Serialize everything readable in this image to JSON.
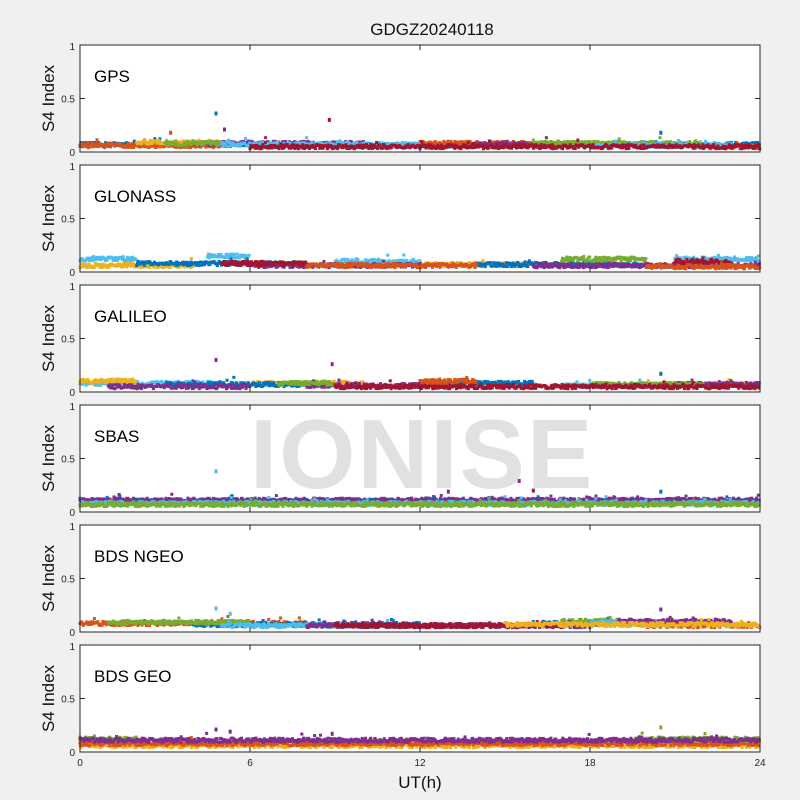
{
  "chart_data": {
    "type": "scatter",
    "title": "GDGZ20240118",
    "xlabel": "UT(h)",
    "ylabel": "S4 Index",
    "xlim": [
      0,
      24
    ],
    "ylim": [
      0,
      1
    ],
    "xticks": [
      "0",
      "6",
      "12",
      "18",
      "24"
    ],
    "yticks": [
      "0",
      "0.5",
      "1"
    ],
    "watermark": "IONISE",
    "colors": [
      "#0072BD",
      "#D95319",
      "#EDB120",
      "#7E2F8E",
      "#77AC30",
      "#4DBEEE",
      "#A2142F"
    ],
    "panels": [
      {
        "name": "GPS",
        "series": [
          {
            "color": 0,
            "segments": [
              [
                0,
                6,
                0.07
              ],
              [
                9,
                14,
                0.06
              ],
              [
                19,
                24,
                0.07
              ]
            ]
          },
          {
            "color": 1,
            "segments": [
              [
                0,
                5,
                0.06
              ],
              [
                12,
                16,
                0.08
              ],
              [
                22,
                24,
                0.05
              ]
            ]
          },
          {
            "color": 2,
            "segments": [
              [
                2,
                5,
                0.09
              ],
              [
                17,
                20,
                0.07
              ]
            ]
          },
          {
            "color": 3,
            "segments": [
              [
                4,
                10,
                0.08
              ],
              [
                14,
                18,
                0.07
              ]
            ]
          },
          {
            "color": 4,
            "segments": [
              [
                3,
                5,
                0.08
              ],
              [
                16,
                22,
                0.08
              ]
            ]
          },
          {
            "color": 5,
            "segments": [
              [
                5,
                12,
                0.07
              ],
              [
                18,
                23,
                0.06
              ]
            ]
          },
          {
            "color": 6,
            "segments": [
              [
                6,
                14,
                0.05
              ],
              [
                14,
                24,
                0.05
              ]
            ]
          }
        ],
        "outliers": [
          [
            4.8,
            0.36,
            0
          ],
          [
            5.1,
            0.21,
            3
          ],
          [
            8.8,
            0.3,
            6
          ],
          [
            20.5,
            0.18,
            0
          ],
          [
            3.2,
            0.18,
            1
          ]
        ]
      },
      {
        "name": "GLONASS",
        "series": [
          {
            "color": 5,
            "segments": [
              [
                0,
                2,
                0.12
              ],
              [
                4.5,
                6,
                0.15
              ],
              [
                9,
                12,
                0.1
              ],
              [
                21,
                24,
                0.12
              ]
            ]
          },
          {
            "color": 2,
            "segments": [
              [
                0,
                4,
                0.06
              ],
              [
                12,
                16,
                0.07
              ]
            ]
          },
          {
            "color": 0,
            "segments": [
              [
                2,
                8,
                0.08
              ],
              [
                14,
                20,
                0.07
              ]
            ]
          },
          {
            "color": 3,
            "segments": [
              [
                6,
                12,
                0.06
              ],
              [
                16,
                24,
                0.06
              ]
            ]
          },
          {
            "color": 4,
            "segments": [
              [
                17,
                20,
                0.12
              ]
            ]
          },
          {
            "color": 6,
            "segments": [
              [
                5,
                8,
                0.08
              ],
              [
                21,
                23,
                0.1
              ]
            ]
          },
          {
            "color": 1,
            "segments": [
              [
                8,
                14,
                0.06
              ],
              [
                20,
                24,
                0.05
              ]
            ]
          }
        ],
        "outliers": []
      },
      {
        "name": "GALILEO",
        "series": [
          {
            "color": 5,
            "segments": [
              [
                0,
                5,
                0.08
              ],
              [
                17,
                20,
                0.06
              ]
            ]
          },
          {
            "color": 2,
            "segments": [
              [
                0,
                2,
                0.1
              ],
              [
                6,
                10,
                0.08
              ],
              [
                20,
                24,
                0.07
              ]
            ]
          },
          {
            "color": 0,
            "segments": [
              [
                3,
                8,
                0.07
              ],
              [
                12,
                16,
                0.08
              ]
            ]
          },
          {
            "color": 3,
            "segments": [
              [
                1,
                6,
                0.05
              ],
              [
                8,
                12,
                0.06
              ],
              [
                21,
                24,
                0.07
              ]
            ]
          },
          {
            "color": 4,
            "segments": [
              [
                7,
                9,
                0.08
              ],
              [
                18,
                22,
                0.07
              ]
            ]
          },
          {
            "color": 6,
            "segments": [
              [
                9,
                24,
                0.05
              ]
            ]
          },
          {
            "color": 1,
            "segments": [
              [
                12,
                14,
                0.1
              ]
            ]
          }
        ],
        "outliers": [
          [
            4.8,
            0.3,
            3
          ],
          [
            8.9,
            0.26,
            3
          ],
          [
            20.5,
            0.17,
            0
          ]
        ]
      },
      {
        "name": "SBAS",
        "series": [
          {
            "color": 0,
            "segments": [
              [
                0,
                24,
                0.1
              ]
            ]
          },
          {
            "color": 3,
            "segments": [
              [
                0,
                24,
                0.11
              ]
            ]
          },
          {
            "color": 5,
            "segments": [
              [
                0,
                24,
                0.08
              ]
            ]
          },
          {
            "color": 4,
            "segments": [
              [
                0,
                24,
                0.07
              ]
            ]
          }
        ],
        "outliers": [
          [
            4.8,
            0.38,
            5
          ],
          [
            13,
            0.19,
            3
          ],
          [
            15.5,
            0.29,
            3
          ],
          [
            16,
            0.2,
            6
          ],
          [
            20.5,
            0.19,
            0
          ]
        ]
      },
      {
        "name": "BDS NGEO",
        "series": [
          {
            "color": 1,
            "segments": [
              [
                0,
                8,
                0.08
              ],
              [
                20,
                24,
                0.06
              ]
            ]
          },
          {
            "color": 0,
            "segments": [
              [
                4,
                12,
                0.07
              ],
              [
                16,
                20,
                0.08
              ]
            ]
          },
          {
            "color": 4,
            "segments": [
              [
                1,
                6,
                0.09
              ],
              [
                17,
                19,
                0.1
              ]
            ]
          },
          {
            "color": 5,
            "segments": [
              [
                5,
                11,
                0.06
              ],
              [
                18,
                22,
                0.09
              ]
            ]
          },
          {
            "color": 3,
            "segments": [
              [
                8,
                18,
                0.06
              ],
              [
                19,
                23,
                0.1
              ]
            ]
          },
          {
            "color": 6,
            "segments": [
              [
                9,
                17,
                0.06
              ]
            ]
          },
          {
            "color": 2,
            "segments": [
              [
                15,
                24,
                0.07
              ]
            ]
          }
        ],
        "outliers": [
          [
            4.8,
            0.22,
            5
          ],
          [
            5.3,
            0.17,
            5
          ],
          [
            20.5,
            0.21,
            3
          ]
        ]
      },
      {
        "name": "BDS GEO",
        "series": [
          {
            "color": 2,
            "segments": [
              [
                0,
                24,
                0.06
              ]
            ]
          },
          {
            "color": 1,
            "segments": [
              [
                0,
                24,
                0.08
              ]
            ]
          },
          {
            "color": 4,
            "segments": [
              [
                0,
                2,
                0.12
              ],
              [
                19.6,
                24,
                0.12
              ]
            ]
          },
          {
            "color": 3,
            "segments": [
              [
                0,
                24,
                0.11
              ]
            ]
          }
        ],
        "outliers": [
          [
            4.8,
            0.21,
            3
          ],
          [
            5.3,
            0.19,
            3
          ],
          [
            8.9,
            0.17,
            3
          ],
          [
            20.5,
            0.23,
            4
          ]
        ]
      }
    ]
  }
}
